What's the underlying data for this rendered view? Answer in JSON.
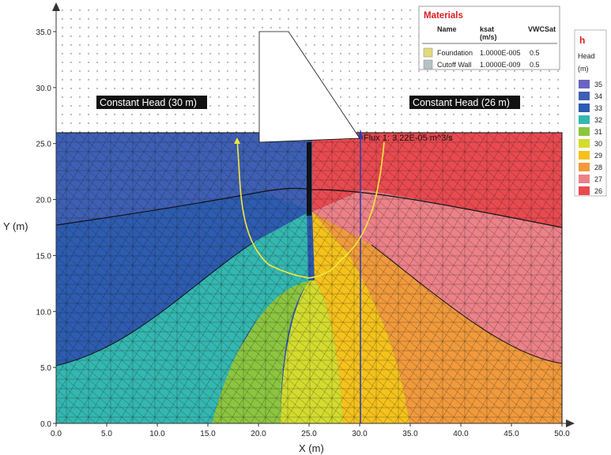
{
  "plot": {
    "x_axis_label": "X (m)",
    "y_axis_label": "Y (m)",
    "x_ticks": [
      "0.0",
      "5.0",
      "10.0",
      "15.0",
      "20.0",
      "25.0",
      "30.0",
      "35.0",
      "40.0",
      "45.0",
      "50.0"
    ],
    "y_ticks": [
      "0.0",
      "5.0",
      "10.0",
      "15.0",
      "20.0",
      "25.0",
      "30.0",
      "35.0"
    ],
    "x_range": [
      0,
      50
    ],
    "y_range": [
      0,
      36.5
    ]
  },
  "annotations": {
    "upstream_label": "Constant Head (30 m)",
    "downstream_label": "Constant Head (26 m)",
    "flux_label": "Flux 1: 3.22E-05 m^3/s"
  },
  "materials": {
    "title": "Materials",
    "headers": [
      "Name",
      "ksat\n(m/s)",
      "VWCSat"
    ],
    "rows": [
      {
        "swatch": "#e3da7a",
        "name": "Foundation",
        "ksat": "1.0000E-005",
        "vwc": "0.5"
      },
      {
        "swatch": "#b4c2c4",
        "name": "Cutoff Wall",
        "ksat": "1.0000E-009",
        "vwc": "0.5"
      }
    ]
  },
  "legend": {
    "title": "h",
    "subtitle_1": "Head",
    "subtitle_2": "(m)",
    "entries": [
      {
        "label": "35",
        "color": "#6b63c4"
      },
      {
        "label": "34",
        "color": "#3e5fb4"
      },
      {
        "label": "33",
        "color": "#2d5cb0"
      },
      {
        "label": "32",
        "color": "#34b7b0"
      },
      {
        "label": "31",
        "color": "#8cc540"
      },
      {
        "label": "30",
        "color": "#d3dc2e"
      },
      {
        "label": "29",
        "color": "#f5c21c"
      },
      {
        "label": "28",
        "color": "#f19a3c"
      },
      {
        "label": "27",
        "color": "#ec8188"
      },
      {
        "label": "26",
        "color": "#e84a50"
      }
    ]
  }
}
